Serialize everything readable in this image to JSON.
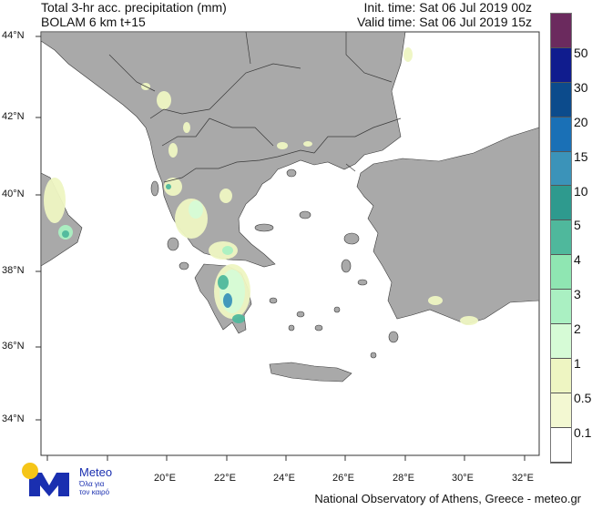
{
  "header": {
    "title": "Total 3-hr acc. precipitation (mm)",
    "model": "BOLAM 6 km t+15",
    "init_time": "Init. time: Sat 06 Jul 2019 00z",
    "valid_time": "Valid time: Sat 06 Jul 2019 15z"
  },
  "axes": {
    "lat_labels": [
      "44°N",
      "42°N",
      "40°N",
      "38°N",
      "36°N",
      "34°N"
    ],
    "lon_labels": [
      "20°E",
      "22°E",
      "24°E",
      "26°E",
      "28°E",
      "30°E",
      "32°E"
    ]
  },
  "legend": {
    "colors": [
      "#6b2a5e",
      "#101c8e",
      "#0c4b8c",
      "#1a70b6",
      "#3b93b9",
      "#2e9a8e",
      "#4fb89c",
      "#8fe6b2",
      "#aaf0c2",
      "#d6fbd6",
      "#eef5c2",
      "#f3f8d2",
      "#ffffff"
    ],
    "labels": [
      "50",
      "30",
      "20",
      "15",
      "10",
      "5",
      "4",
      "3",
      "2",
      "1",
      "0.5",
      "0.1"
    ]
  },
  "colors": {
    "land": "#a9a9a9",
    "sea": "#ffffff",
    "border": "#3a3a3a"
  },
  "logo": {
    "name": "Meteo",
    "tagline1": "Όλα για",
    "tagline2": "τον καιρό",
    "blue": "#1a2fb0",
    "yellow": "#f5c518"
  },
  "footer": {
    "credit": "National Observatory of Athens, Greece - meteo.gr"
  }
}
